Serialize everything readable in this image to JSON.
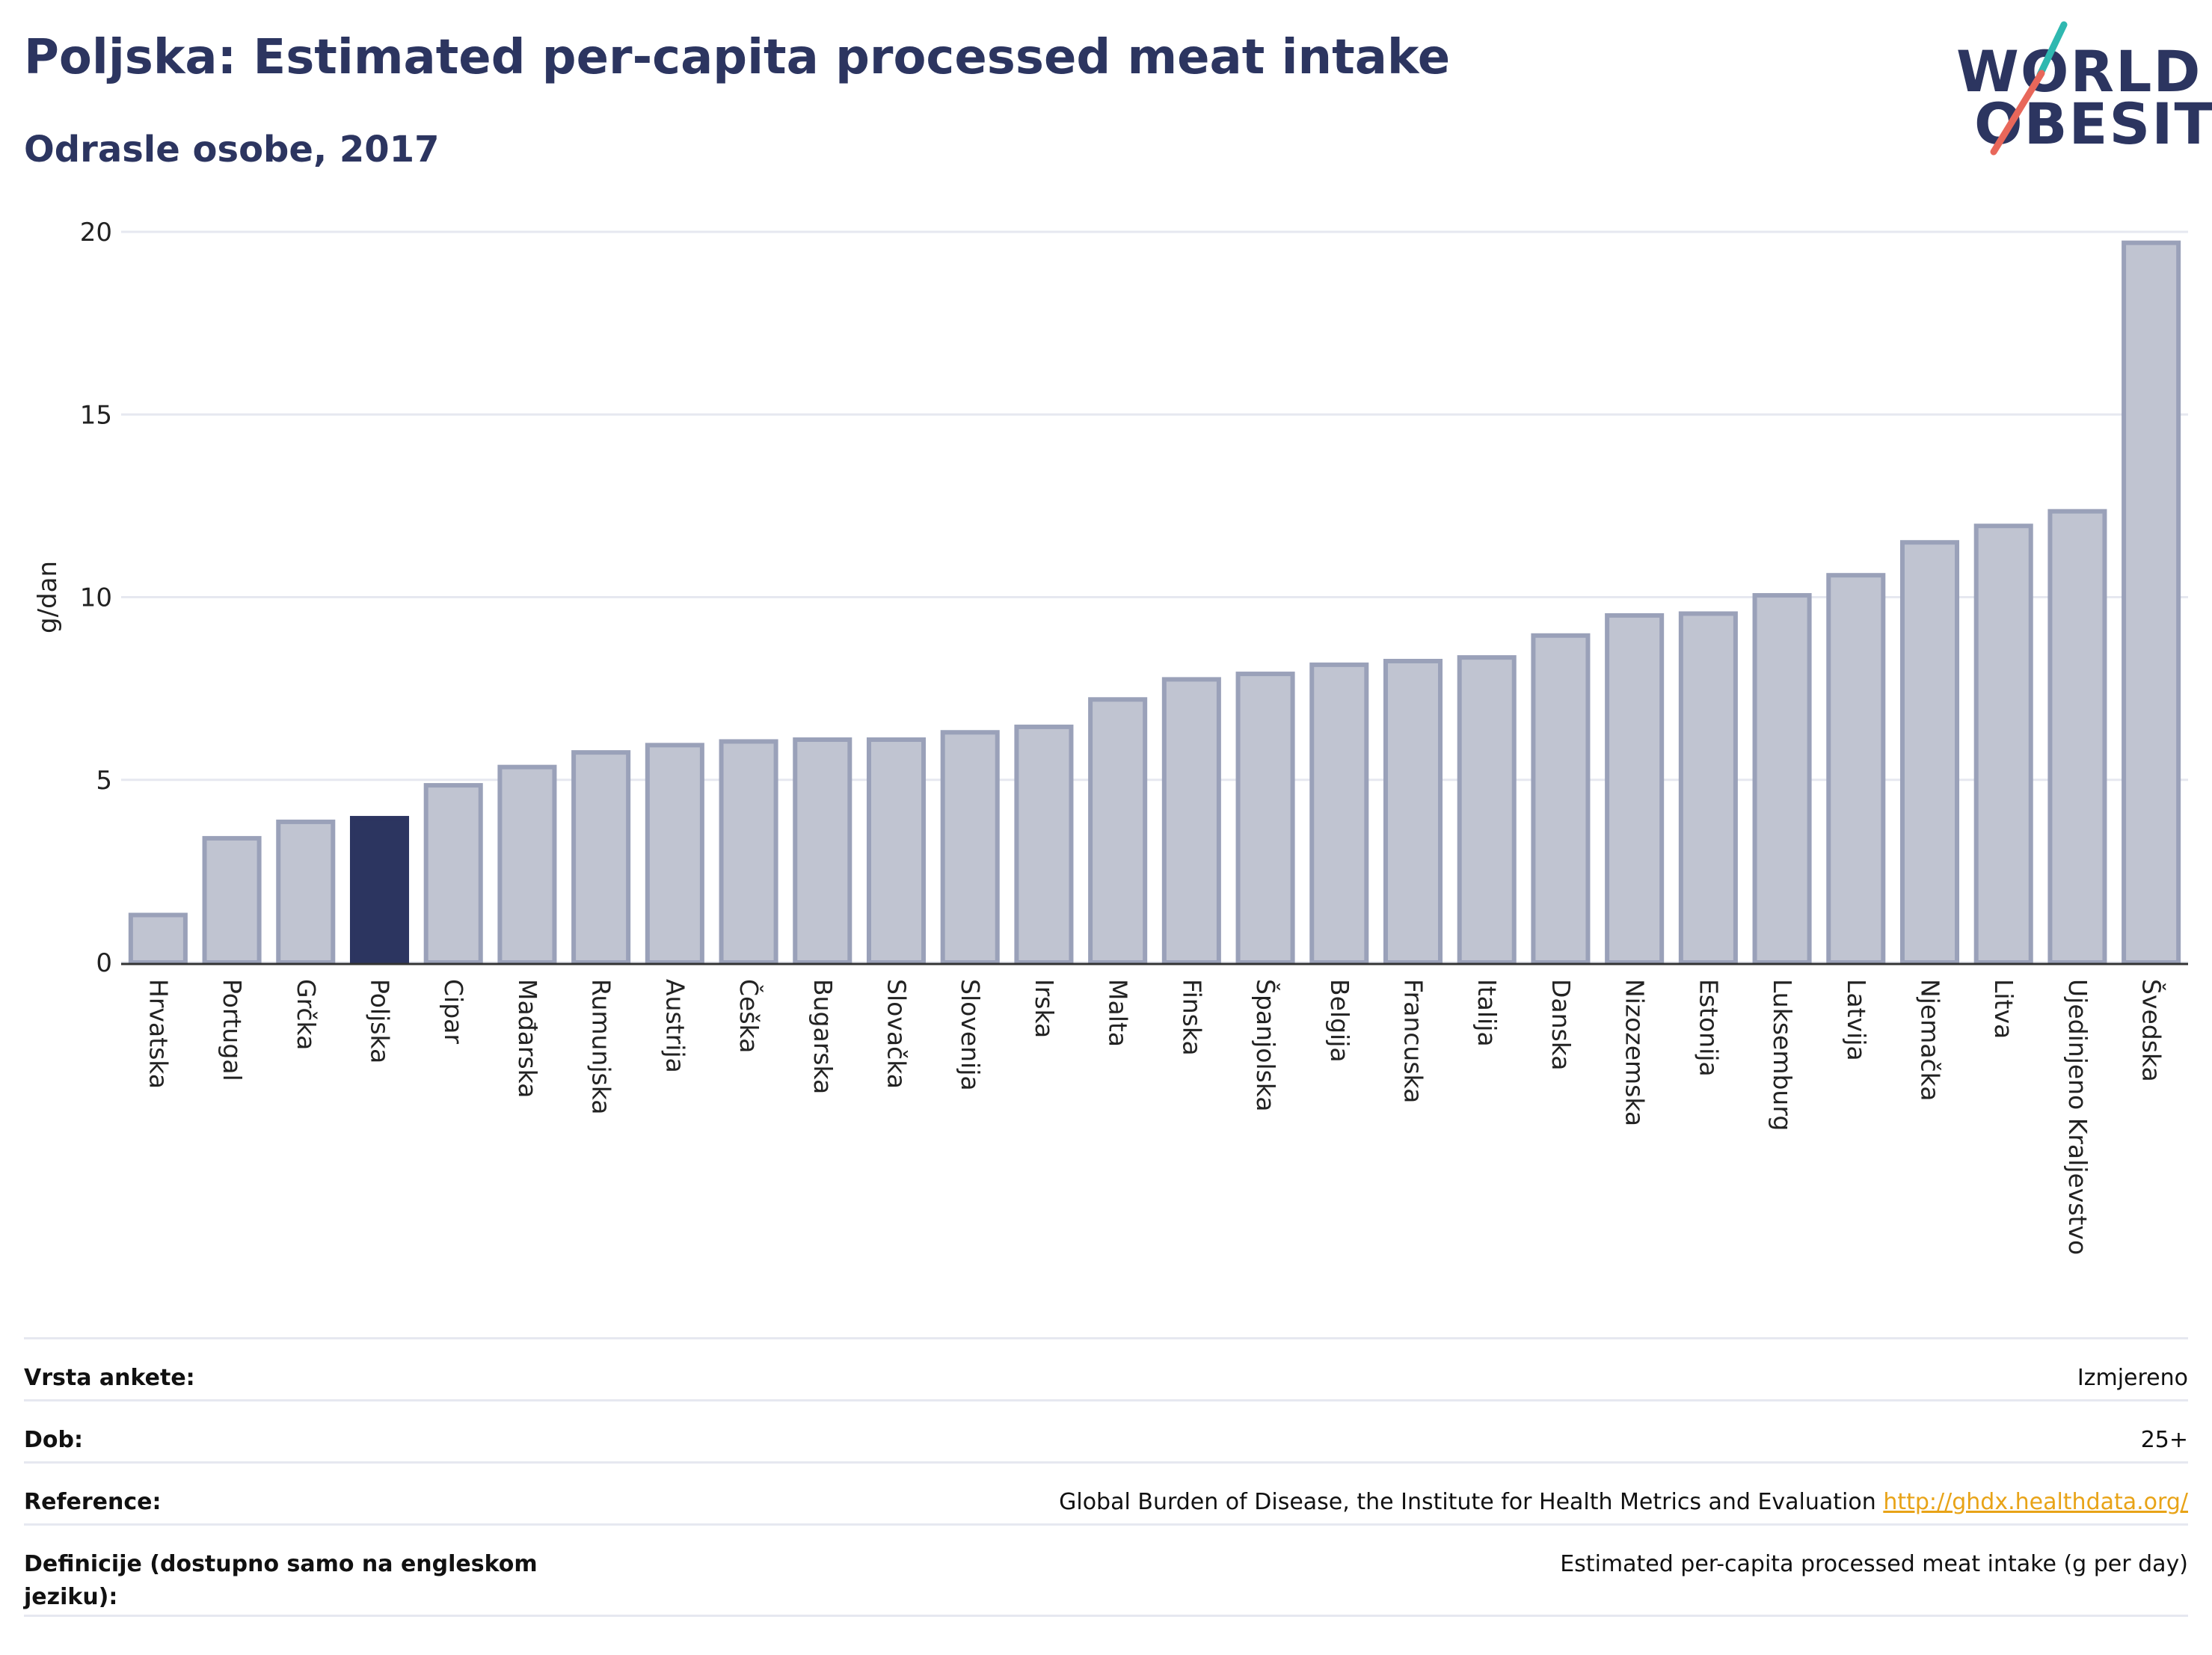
{
  "header": {
    "title": "Poljska: Estimated per-capita processed meat intake",
    "subtitle": "Odrasle osobe, 2017"
  },
  "logo": {
    "line1": "WORLD",
    "line2": "OBESITY",
    "slash_color_top": "#2fb8b0",
    "slash_color_bottom": "#e8675a"
  },
  "colors": {
    "bar_default_fill": "#c0c4d1",
    "bar_default_stroke": "#9aa1b9",
    "bar_highlight": "#2c3560",
    "title": "#2c3560",
    "grid": "#e6e8f0",
    "axis": "#333333"
  },
  "chart_data": {
    "type": "bar",
    "ylabel": "g/dan",
    "ylim": [
      0,
      20
    ],
    "yticks": [
      0,
      5,
      10,
      15,
      20
    ],
    "grid": true,
    "highlight": "Poljska",
    "categories": [
      "Hrvatska",
      "Portugal",
      "Grčka",
      "Poljska",
      "Cipar",
      "Mađarska",
      "Rumunjska",
      "Austrija",
      "Češka",
      "Bugarska",
      "Slovačka",
      "Slovenija",
      "Irska",
      "Malta",
      "Finska",
      "Španjolska",
      "Belgija",
      "Francuska",
      "Italija",
      "Danska",
      "Nizozemska",
      "Estonija",
      "Luksemburg",
      "Latvija",
      "Njemačka",
      "Litva",
      "Ujedinjeno Kraljevstvo",
      "Švedska"
    ],
    "values": [
      1.3,
      3.4,
      3.85,
      3.95,
      4.85,
      5.35,
      5.75,
      5.95,
      6.05,
      6.1,
      6.1,
      6.3,
      6.45,
      7.2,
      7.75,
      7.9,
      8.15,
      8.25,
      8.35,
      8.95,
      9.5,
      9.55,
      10.05,
      10.6,
      11.5,
      11.95,
      12.35,
      19.7
    ]
  },
  "info_table": {
    "survey_label": "Vrsta ankete:",
    "survey_value": "Izmjereno",
    "age_label": "Dob:",
    "age_value": "25+",
    "reference_label": "Reference:",
    "reference_value": "Global Burden of Disease, the Institute for Health Metrics and Evaluation",
    "reference_link": "http://ghdx.healthdata.org/",
    "definition_label": "Definicije (dostupno samo na engleskom jeziku):",
    "definition_value": "Estimated per-capita processed meat intake (g per day)"
  }
}
